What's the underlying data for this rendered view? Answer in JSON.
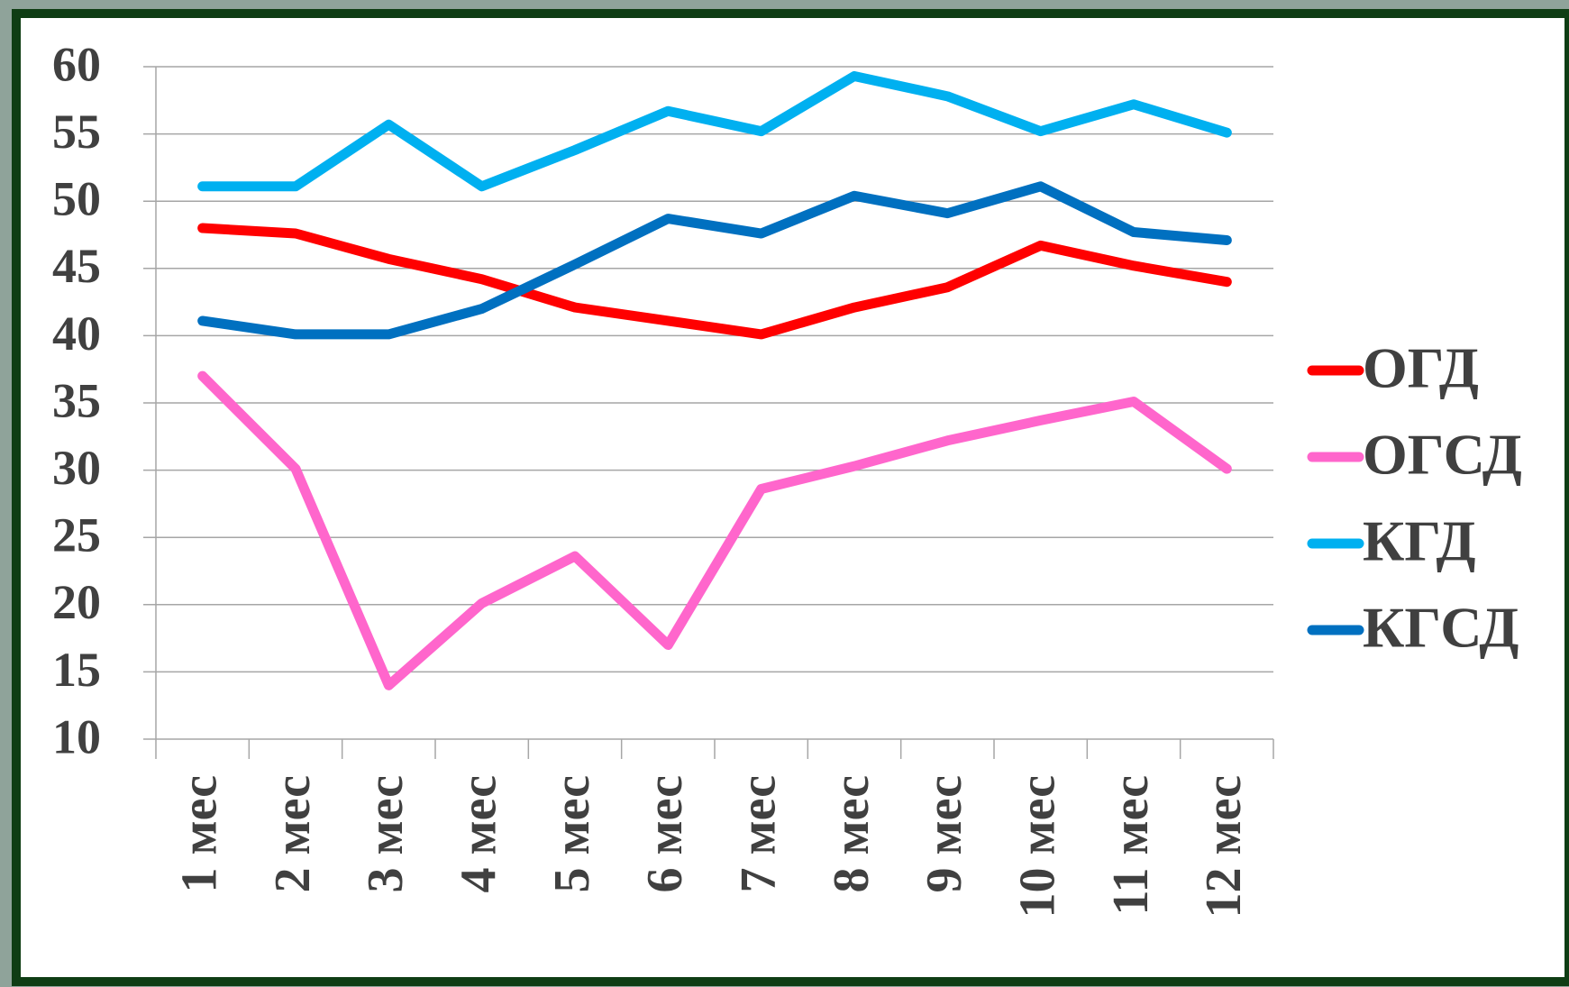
{
  "chart_data": {
    "type": "line",
    "categories": [
      "1 мес",
      "2 мес",
      "3 мес",
      "4 мес",
      "5 мес",
      "6 мес",
      "7 мес",
      "8 мес",
      "9 мес",
      "10 мес",
      "11 мес",
      "12 мес"
    ],
    "series": [
      {
        "name": "ОГД",
        "color": "#ff0000",
        "values": [
          48.0,
          47.6,
          45.7,
          44.2,
          42.1,
          41.1,
          40.1,
          42.1,
          43.6,
          46.7,
          45.2,
          44.0
        ]
      },
      {
        "name": "ОГСД",
        "color": "#ff66cc",
        "values": [
          37.0,
          30.1,
          14.0,
          20.1,
          23.6,
          17.0,
          28.6,
          30.3,
          32.2,
          33.7,
          35.1,
          30.1
        ]
      },
      {
        "name": "КГД",
        "color": "#00b0f0",
        "values": [
          51.1,
          51.1,
          55.7,
          51.1,
          53.8,
          56.7,
          55.2,
          59.3,
          57.8,
          55.2,
          57.2,
          55.1
        ]
      },
      {
        "name": "КГСД",
        "color": "#0070c0",
        "values": [
          41.1,
          40.1,
          40.1,
          42.0,
          45.3,
          48.7,
          47.6,
          50.4,
          49.1,
          51.1,
          47.7,
          47.1
        ]
      }
    ],
    "ylim": [
      10,
      60
    ],
    "yticks": [
      10,
      15,
      20,
      25,
      30,
      35,
      40,
      45,
      50,
      55,
      60
    ],
    "grid": true,
    "legend": "right"
  }
}
